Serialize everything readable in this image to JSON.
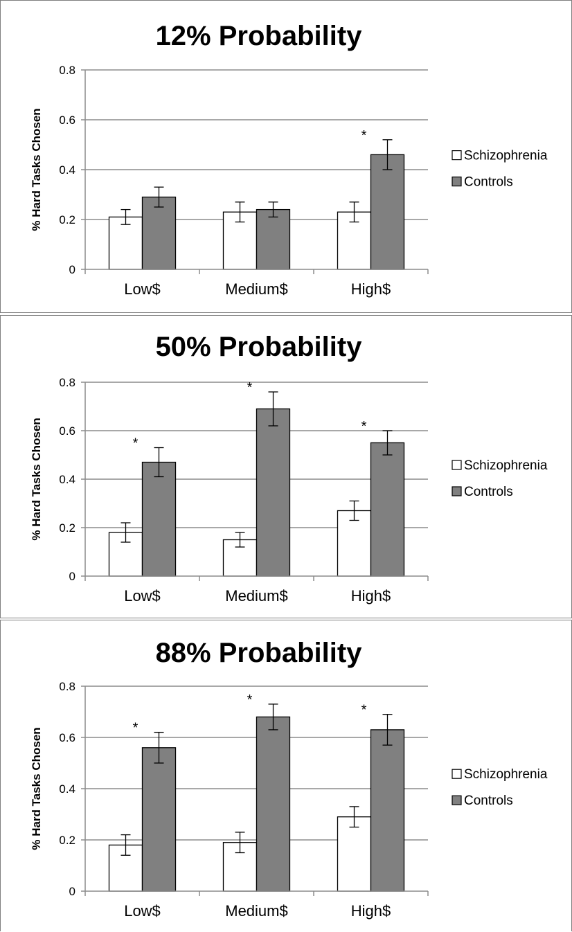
{
  "chart_data": [
    {
      "type": "bar",
      "title": "12% Probability",
      "ylabel": "% Hard Tasks Chosen",
      "xlabel": "",
      "categories": [
        "Low$",
        "Medium$",
        "High$"
      ],
      "ylim": [
        0,
        0.8
      ],
      "yticks": [
        "0",
        "0.2",
        "0.4",
        "0.6",
        "0.8"
      ],
      "grid": true,
      "legend_position": "right",
      "series": [
        {
          "name": "Schizophrenia",
          "color": "#ffffff",
          "values": [
            0.21,
            0.23,
            0.23
          ],
          "errors": [
            0.03,
            0.04,
            0.04
          ]
        },
        {
          "name": "Controls",
          "color": "#808080",
          "values": [
            0.29,
            0.24,
            0.46
          ],
          "errors": [
            0.04,
            0.03,
            0.06
          ]
        }
      ],
      "significance": [
        "",
        "",
        "*"
      ]
    },
    {
      "type": "bar",
      "title": "50% Probability",
      "ylabel": "% Hard Tasks Chosen",
      "xlabel": "",
      "categories": [
        "Low$",
        "Medium$",
        "High$"
      ],
      "ylim": [
        0,
        0.8
      ],
      "yticks": [
        "0",
        "0.2",
        "0.4",
        "0.6",
        "0.8"
      ],
      "grid": true,
      "legend_position": "right",
      "series": [
        {
          "name": "Schizophrenia",
          "color": "#ffffff",
          "values": [
            0.18,
            0.15,
            0.27
          ],
          "errors": [
            0.04,
            0.03,
            0.04
          ]
        },
        {
          "name": "Controls",
          "color": "#808080",
          "values": [
            0.47,
            0.69,
            0.55
          ],
          "errors": [
            0.06,
            0.07,
            0.05
          ]
        }
      ],
      "significance": [
        "*",
        "*",
        "*"
      ]
    },
    {
      "type": "bar",
      "title": "88% Probability",
      "ylabel": "% Hard Tasks Chosen",
      "xlabel": "",
      "categories": [
        "Low$",
        "Medium$",
        "High$"
      ],
      "ylim": [
        0,
        0.8
      ],
      "yticks": [
        "0",
        "0.2",
        "0.4",
        "0.6",
        "0.8"
      ],
      "grid": true,
      "legend_position": "right",
      "series": [
        {
          "name": "Schizophrenia",
          "color": "#ffffff",
          "values": [
            0.18,
            0.19,
            0.29
          ],
          "errors": [
            0.04,
            0.04,
            0.04
          ]
        },
        {
          "name": "Controls",
          "color": "#808080",
          "values": [
            0.56,
            0.68,
            0.63
          ],
          "errors": [
            0.06,
            0.05,
            0.06
          ]
        }
      ],
      "significance": [
        "*",
        "*",
        "*"
      ]
    }
  ]
}
